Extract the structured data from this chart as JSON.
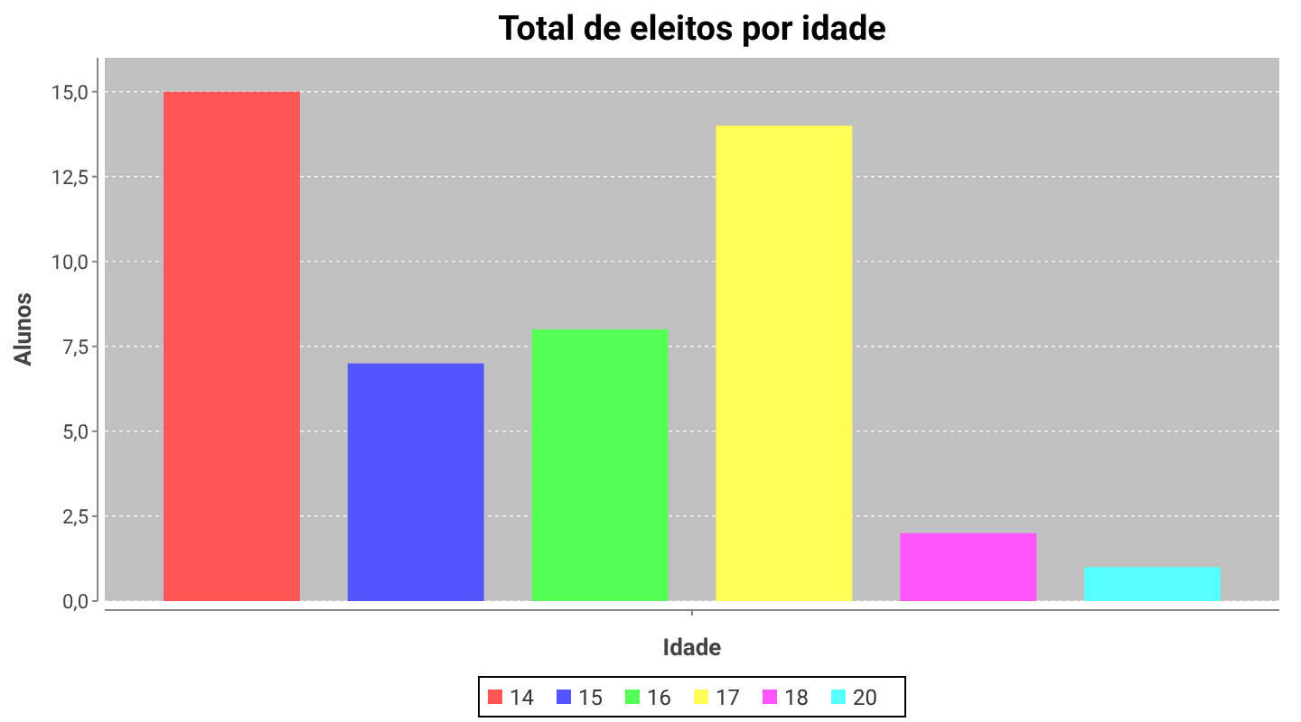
{
  "chart_data": {
    "type": "bar",
    "title": "Total de eleitos por idade",
    "xlabel": "Idade",
    "ylabel": "Alunos",
    "categories": [
      null
    ],
    "series": [
      {
        "name": "14",
        "color": "#ff5555",
        "values": [
          15
        ]
      },
      {
        "name": "15",
        "color": "#5555ff",
        "values": [
          7
        ]
      },
      {
        "name": "16",
        "color": "#55ff55",
        "values": [
          8
        ]
      },
      {
        "name": "17",
        "color": "#ffff55",
        "values": [
          14
        ]
      },
      {
        "name": "18",
        "color": "#ff55ff",
        "values": [
          2
        ]
      },
      {
        "name": "20",
        "color": "#55ffff",
        "values": [
          1
        ]
      }
    ],
    "ylim": [
      0,
      16
    ],
    "yticks": [
      {
        "value": 0,
        "label": "0,0"
      },
      {
        "value": 2.5,
        "label": "2,5"
      },
      {
        "value": 5,
        "label": "5,0"
      },
      {
        "value": 7.5,
        "label": "7,5"
      },
      {
        "value": 10,
        "label": "10,0"
      },
      {
        "value": 12.5,
        "label": "12,5"
      },
      {
        "value": 15,
        "label": "15,0"
      }
    ],
    "grid": "y",
    "legend": "bottom"
  }
}
